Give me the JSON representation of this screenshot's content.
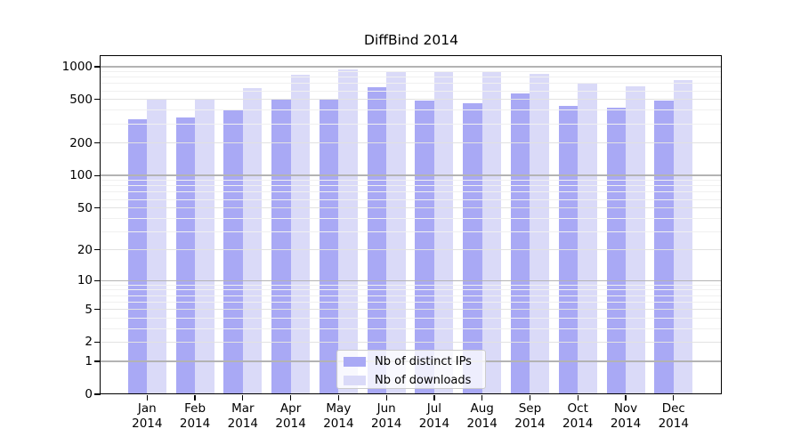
{
  "chart_data": {
    "type": "bar",
    "title": "DiffBind 2014",
    "categories": [
      "Jan",
      "Feb",
      "Mar",
      "Apr",
      "May",
      "Jun",
      "Jul",
      "Aug",
      "Sep",
      "Oct",
      "Nov",
      "Dec"
    ],
    "year_label": "2014",
    "series": [
      {
        "name": "Nb of distinct IPs",
        "color": "#a9a9f5",
        "values": [
          330,
          341,
          404,
          505,
          506,
          654,
          489,
          461,
          570,
          436,
          420,
          486
        ]
      },
      {
        "name": "Nb of downloads",
        "color": "#dadaf8",
        "values": [
          508,
          509,
          640,
          848,
          940,
          915,
          912,
          895,
          858,
          697,
          660,
          752
        ]
      }
    ],
    "y_ticks": [
      0,
      1,
      2,
      5,
      10,
      20,
      50,
      100,
      200,
      500,
      1000
    ],
    "y_scale": "log10(value+1)",
    "ylim": [
      0,
      1250
    ],
    "grid": true,
    "legend_position": "lower-center"
  }
}
